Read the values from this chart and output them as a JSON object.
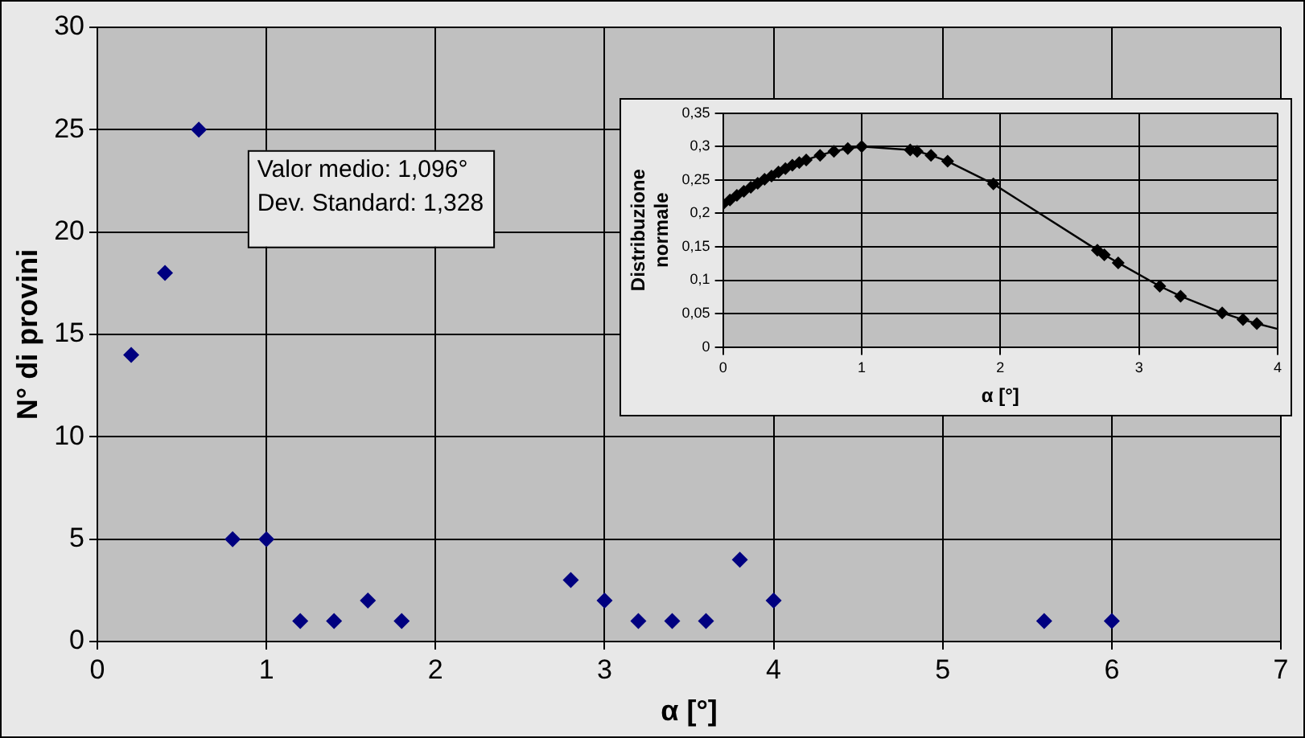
{
  "chart_data": [
    {
      "type": "scatter",
      "xlabel": "α [°]",
      "ylabel": "N° di provini",
      "xlim": [
        0,
        7
      ],
      "xticks": [
        0,
        1,
        2,
        3,
        4,
        5,
        6,
        7
      ],
      "ylim": [
        0,
        30
      ],
      "yticks": [
        0,
        5,
        10,
        15,
        20,
        25,
        30
      ],
      "grid": true,
      "legend": false,
      "marker": "diamond",
      "annotations": [
        "Valor medio: 1,096°",
        "Dev. Standard: 1,328"
      ],
      "series": [
        {
          "color": "#000080",
          "x": [
            0.2,
            0.4,
            0.6,
            0.8,
            1,
            1.2,
            1.4,
            1.6,
            1.8,
            2.8,
            3,
            3.2,
            3.4,
            3.6,
            3.8,
            4,
            5.6,
            6
          ],
          "values": [
            14,
            18,
            25,
            5,
            5,
            1,
            1,
            2,
            1,
            3,
            2,
            1,
            1,
            1,
            4,
            2,
            1,
            1
          ]
        }
      ]
    },
    {
      "type": "scatter",
      "xlabel": "α [°]",
      "ylabel": "Distribuzione normale",
      "xlim": [
        0,
        4
      ],
      "xticks": [
        0,
        1,
        2,
        3,
        4
      ],
      "ylim": [
        0,
        0.35
      ],
      "yticks": [
        0,
        {
          "value": 0.05,
          "label": "0,05"
        },
        {
          "value": 0.1,
          "label": "0,1"
        },
        {
          "value": 0.15,
          "label": "0,15"
        },
        {
          "value": 0.2,
          "label": "0,2"
        },
        {
          "value": 0.25,
          "label": "0,25"
        },
        {
          "value": 0.3,
          "label": "0,3"
        },
        {
          "value": 0.35,
          "label": "0,35"
        }
      ],
      "grid": true,
      "legend": false,
      "marker": "diamond",
      "series": [
        {
          "type": "line",
          "marker": "none",
          "color": "#000000",
          "x": [
            0,
            0.1,
            0.2,
            0.3,
            0.4,
            0.5,
            0.6,
            0.7,
            0.8,
            0.9,
            1,
            1.35,
            1.4,
            1.5,
            1.62,
            1.95,
            2.7,
            2.75,
            2.85,
            3.15,
            3.3,
            3.6,
            3.75,
            3.85,
            4
          ],
          "values": [
            0.214,
            0.227,
            0.239,
            0.251,
            0.262,
            0.272,
            0.28,
            0.287,
            0.293,
            0.297,
            0.3,
            0.295,
            0.293,
            0.287,
            0.278,
            0.244,
            0.145,
            0.138,
            0.126,
            0.091,
            0.076,
            0.051,
            0.041,
            0.035,
            0.027
          ]
        },
        {
          "type": "scatter",
          "color": "#000000",
          "x": [
            0,
            0.05,
            0.1,
            0.15,
            0.2,
            0.25,
            0.3,
            0.35,
            0.4,
            0.45,
            0.5,
            0.55,
            0.6,
            0.7,
            0.8,
            0.9,
            1,
            1.35,
            1.4,
            1.5,
            1.62,
            1.95,
            2.7,
            2.75,
            2.85,
            3.15,
            3.3,
            3.6,
            3.75,
            3.85
          ],
          "values": [
            0.214,
            0.22,
            0.227,
            0.233,
            0.239,
            0.245,
            0.251,
            0.256,
            0.262,
            0.267,
            0.272,
            0.276,
            0.28,
            0.287,
            0.293,
            0.297,
            0.3,
            0.295,
            0.293,
            0.287,
            0.278,
            0.244,
            0.145,
            0.138,
            0.126,
            0.091,
            0.076,
            0.051,
            0.041,
            0.035
          ]
        }
      ]
    }
  ]
}
